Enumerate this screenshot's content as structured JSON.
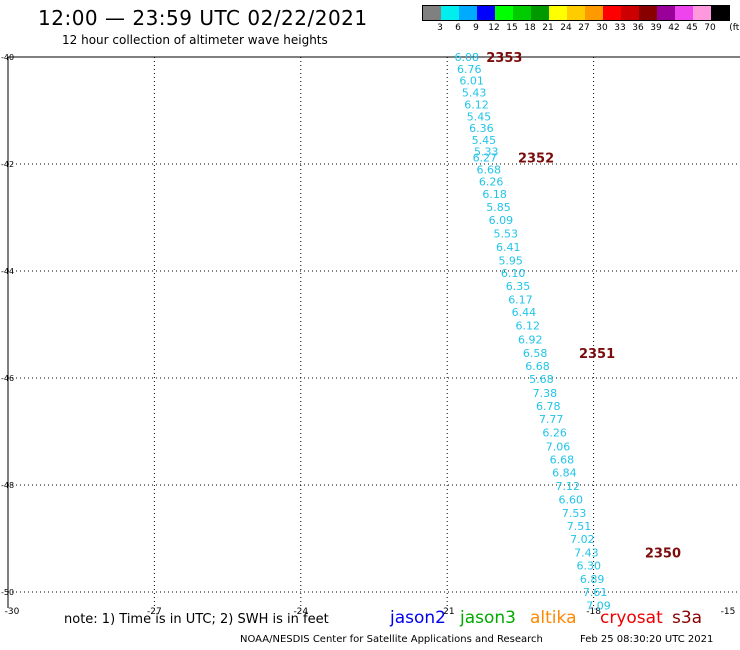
{
  "header": {
    "title": "12:00 — 23:59 UTC 02/22/2021",
    "subtitle": "12 hour collection of altimeter wave heights"
  },
  "legend": {
    "colors": [
      "#808080",
      "#00eeee",
      "#00aaff",
      "#0000ff",
      "#00ff00",
      "#00cc00",
      "#009900",
      "#ffff00",
      "#ffcc00",
      "#ff9900",
      "#ff0000",
      "#cc0000",
      "#880000",
      "#990099",
      "#ee44ee",
      "#ff99dd",
      "#000000"
    ],
    "labels": [
      "3",
      "6",
      "9",
      "12",
      "15",
      "18",
      "21",
      "24",
      "27",
      "30",
      "33",
      "36",
      "39",
      "42",
      "45",
      "70",
      "(ft)"
    ]
  },
  "axes": {
    "lon": [
      -30,
      -27,
      -24,
      -21,
      -18,
      -15
    ],
    "lat": [
      -40,
      -42,
      -44,
      -46,
      -48,
      -50
    ],
    "lon_labels": [
      "-30",
      "-27",
      "-24",
      "-21",
      "-18",
      "-15"
    ],
    "lat_labels": [
      "-40",
      "-42",
      "-44",
      "-46",
      "-48",
      "-50"
    ]
  },
  "wave_heights": [
    {
      "lon": -20.85,
      "lat": -40.0,
      "v": "6.08"
    },
    {
      "lon": -20.8,
      "lat": -40.22,
      "v": "6.76"
    },
    {
      "lon": -20.75,
      "lat": -40.44,
      "v": "6.01"
    },
    {
      "lon": -20.7,
      "lat": -40.66,
      "v": "5.43"
    },
    {
      "lon": -20.65,
      "lat": -40.89,
      "v": "6.12"
    },
    {
      "lon": -20.6,
      "lat": -41.11,
      "v": "5.45"
    },
    {
      "lon": -20.55,
      "lat": -41.33,
      "v": "6.36"
    },
    {
      "lon": -20.5,
      "lat": -41.55,
      "v": "5.45"
    },
    {
      "lon": -20.45,
      "lat": -41.77,
      "v": "5.33"
    },
    {
      "lon": -20.48,
      "lat": -41.88,
      "v": "6.27"
    },
    {
      "lon": -20.4,
      "lat": -42.1,
      "v": "6.68"
    },
    {
      "lon": -20.35,
      "lat": -42.33,
      "v": "6.26"
    },
    {
      "lon": -20.28,
      "lat": -42.56,
      "v": "6.18"
    },
    {
      "lon": -20.2,
      "lat": -42.8,
      "v": "5.85"
    },
    {
      "lon": -20.15,
      "lat": -43.05,
      "v": "6.09"
    },
    {
      "lon": -20.05,
      "lat": -43.3,
      "v": "5.53"
    },
    {
      "lon": -20.0,
      "lat": -43.55,
      "v": "6.41"
    },
    {
      "lon": -19.95,
      "lat": -43.8,
      "v": "5.95"
    },
    {
      "lon": -19.9,
      "lat": -44.04,
      "v": "6.10"
    },
    {
      "lon": -19.8,
      "lat": -44.28,
      "v": "6.35"
    },
    {
      "lon": -19.75,
      "lat": -44.53,
      "v": "6.17"
    },
    {
      "lon": -19.68,
      "lat": -44.77,
      "v": "6.44"
    },
    {
      "lon": -19.6,
      "lat": -45.02,
      "v": "6.12"
    },
    {
      "lon": -19.55,
      "lat": -45.28,
      "v": "6.92"
    },
    {
      "lon": -19.45,
      "lat": -45.53,
      "v": "6.58"
    },
    {
      "lon": -19.4,
      "lat": -45.78,
      "v": "6.68"
    },
    {
      "lon": -19.32,
      "lat": -46.02,
      "v": "5.68"
    },
    {
      "lon": -19.25,
      "lat": -46.28,
      "v": "7.38"
    },
    {
      "lon": -19.18,
      "lat": -46.52,
      "v": "6.78"
    },
    {
      "lon": -19.12,
      "lat": -46.77,
      "v": "7.77"
    },
    {
      "lon": -19.05,
      "lat": -47.02,
      "v": "6.26"
    },
    {
      "lon": -18.98,
      "lat": -47.28,
      "v": "7.06"
    },
    {
      "lon": -18.9,
      "lat": -47.52,
      "v": "6.68"
    },
    {
      "lon": -18.85,
      "lat": -47.77,
      "v": "6.84"
    },
    {
      "lon": -18.78,
      "lat": -48.02,
      "v": "7.12"
    },
    {
      "lon": -18.72,
      "lat": -48.27,
      "v": "6.60"
    },
    {
      "lon": -18.65,
      "lat": -48.52,
      "v": "7.53"
    },
    {
      "lon": -18.55,
      "lat": -48.77,
      "v": "7.51"
    },
    {
      "lon": -18.48,
      "lat": -49.01,
      "v": "7.02"
    },
    {
      "lon": -18.4,
      "lat": -49.26,
      "v": "7.43"
    },
    {
      "lon": -18.35,
      "lat": -49.51,
      "v": "6.30"
    },
    {
      "lon": -18.28,
      "lat": -49.76,
      "v": "6.89"
    },
    {
      "lon": -18.22,
      "lat": -50.0,
      "v": "7.61"
    },
    {
      "lon": -18.15,
      "lat": -50.25,
      "v": "7.09"
    }
  ],
  "pass_times": [
    {
      "lon": -20.2,
      "lat": -40.0,
      "label": "2353"
    },
    {
      "lon": -19.55,
      "lat": -41.88,
      "label": "2352"
    },
    {
      "lon": -18.3,
      "lat": -45.53,
      "label": "2351"
    },
    {
      "lon": -16.95,
      "lat": -49.26,
      "label": "2350"
    }
  ],
  "footer": {
    "note": "note: 1) Time is in UTC; 2) SWH is in feet",
    "satellites": [
      {
        "name": "jason2",
        "color": "#0000ee"
      },
      {
        "name": "jason3",
        "color": "#00aa00"
      },
      {
        "name": "altika",
        "color": "#ff8800"
      },
      {
        "name": "cryosat",
        "color": "#ee0000"
      },
      {
        "name": "s3a",
        "color": "#880000"
      }
    ],
    "credit": "NOAA/NESDIS Center for Satellite Applications and Research",
    "timestamp": "Feb 25 08:30:20 UTC 2021"
  }
}
